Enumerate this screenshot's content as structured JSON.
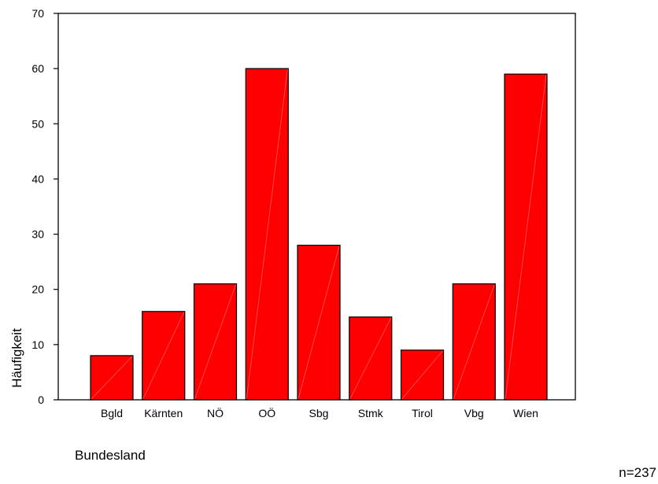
{
  "chart_data": {
    "type": "bar",
    "categories": [
      "Bgld",
      "Kärnten",
      "NÖ",
      "OÖ",
      "Sbg",
      "Stmk",
      "Tirol",
      "Vbg",
      "Wien"
    ],
    "values": [
      8,
      16,
      21,
      60,
      28,
      15,
      9,
      21,
      59
    ],
    "title": "",
    "xlabel": "Bundesland",
    "ylabel": "Häufigkeit",
    "ylim": [
      0,
      70
    ],
    "yticks": [
      0,
      10,
      20,
      30,
      40,
      50,
      60,
      70
    ],
    "grid": false,
    "bar_color": "#ff0000",
    "annotation": "n=237"
  }
}
